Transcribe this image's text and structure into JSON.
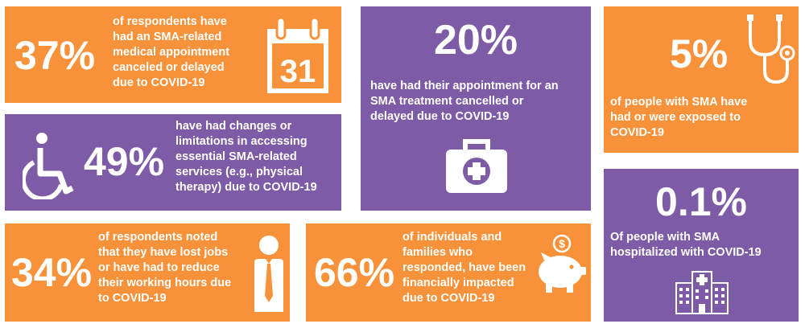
{
  "stats": [
    {
      "id": "appointments",
      "value": "37%",
      "lines": [
        "of respondents have",
        "had an SMA-related",
        "medical appointment",
        "canceled or delayed",
        "due to COVID-19"
      ],
      "icon": "calendar-icon",
      "icon_text": "31",
      "color": "#f7923a"
    },
    {
      "id": "treatment",
      "value": "20%",
      "lines": [
        "have had their appointment for an",
        "SMA treatment cancelled or",
        "delayed due to COVID-19"
      ],
      "icon": "medical-kit-icon",
      "color": "#7d5ba6"
    },
    {
      "id": "exposed",
      "value": "5%",
      "lines": [
        "of people with SMA have",
        "had or were exposed to",
        "COVID-19"
      ],
      "icon": "stethoscope-icon",
      "color": "#f7923a"
    },
    {
      "id": "services",
      "value": "49%",
      "lines": [
        "have had changes or",
        "limitations in accessing",
        "essential SMA-related",
        "services (e.g., physical",
        "therapy) due to COVID-19"
      ],
      "icon": "wheelchair-icon",
      "color": "#7d5ba6"
    },
    {
      "id": "hospitalized",
      "value": "0.1%",
      "lines": [
        "Of people with SMA",
        "hospitalized with COVID-19"
      ],
      "icon": "hospital-icon",
      "color": "#7d5ba6"
    },
    {
      "id": "jobs",
      "value": "34%",
      "lines": [
        "of respondents noted",
        "that they have lost jobs",
        "or have had to reduce",
        "their working hours due",
        "to COVID-19"
      ],
      "icon": "businessman-icon",
      "color": "#f7923a"
    },
    {
      "id": "financial",
      "value": "66%",
      "lines": [
        "of individuals and",
        "families who",
        "responded, have been",
        "financially impacted",
        "due to COVID-19"
      ],
      "icon": "piggy-bank-icon",
      "icon_text": "$",
      "color": "#f7923a"
    }
  ]
}
